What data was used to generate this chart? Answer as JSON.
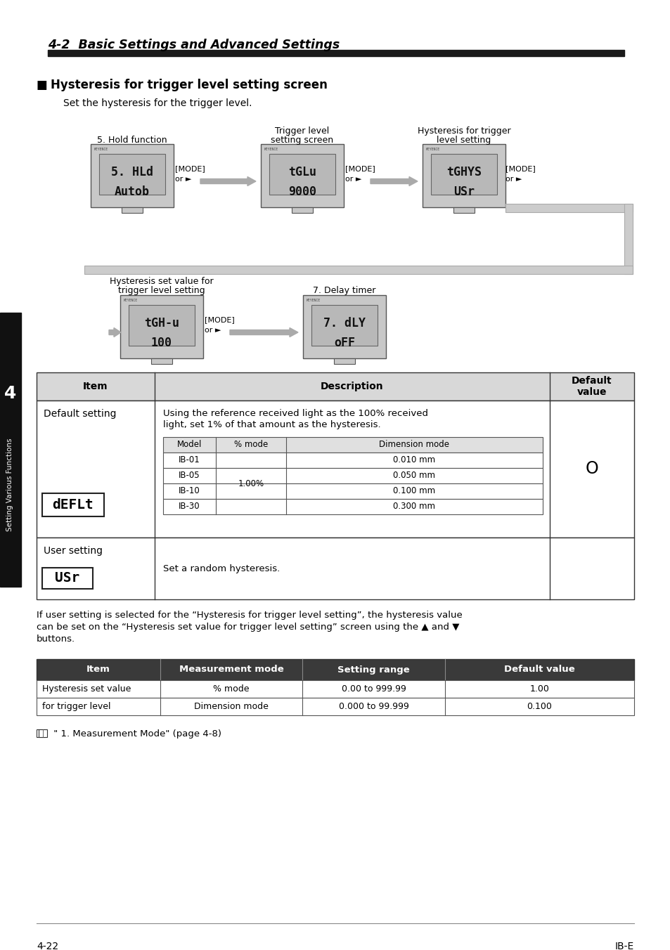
{
  "title": "4-2  Basic Settings and Advanced Settings",
  "section_heading": "Hysteresis for trigger level setting screen",
  "section_subtext": "Set the hysteresis for the trigger level.",
  "bg_color": "#ffffff",
  "sidebar_color": "#111111",
  "sidebar_number": "4",
  "sidebar_text": "Setting Various Functions",
  "header_bar_color": "#1a1a1a",
  "flow1_labels": [
    "5. Hold function",
    "Trigger level\nsetting screen",
    "Hysteresis for trigger\nlevel setting"
  ],
  "flow1_displays": [
    "5. HLd\nAutob",
    "tGLu\n9000",
    "tGHYS\nUSr"
  ],
  "flow2_labels": [
    "Hysteresis set value for\ntrigger level setting",
    "7. Delay timer"
  ],
  "flow2_displays": [
    "tGH-u\n100",
    "7. dLY\noFF"
  ],
  "mode_arrow": "[MODE]\nor ►",
  "table1_headers": [
    "Item",
    "Description",
    "Default\nvalue"
  ],
  "table1_row1_item": "Default setting",
  "table1_row1_display": "dEFLt",
  "table1_row1_desc_line1": "Using the reference received light as the 100% received",
  "table1_row1_desc_line2": "light, set 1% of that amount as the hysteresis.",
  "inner_table_headers": [
    "Model",
    "% mode",
    "Dimension mode"
  ],
  "inner_table_rows": [
    [
      "IB-01",
      "",
      "0.010 mm"
    ],
    [
      "IB-05",
      "1.00%",
      "0.050 mm"
    ],
    [
      "IB-10",
      "",
      "0.100 mm"
    ],
    [
      "IB-30",
      "",
      "0.300 mm"
    ]
  ],
  "table1_row2_item": "User setting",
  "table1_row2_display": "USr",
  "table1_row2_desc": "Set a random hysteresis.",
  "paragraph_lines": [
    "If user setting is selected for the “Hysteresis for trigger level setting”, the hysteresis value",
    "can be set on the “Hysteresis set value for trigger level setting” screen using the ▲ and ▼",
    "buttons."
  ],
  "table2_headers": [
    "Item",
    "Measurement mode",
    "Setting range",
    "Default value"
  ],
  "table2_row1": [
    "Hysteresis set value",
    "% mode",
    "0.00 to 999.99",
    "1.00"
  ],
  "table2_row1b": [
    "for trigger level",
    "Dimension mode",
    "0.000 to 99.999",
    "0.100"
  ],
  "footnote": " \" 1. Measurement Mode\" (page 4-8)",
  "footer_left": "4-22",
  "footer_right": "IB-E"
}
